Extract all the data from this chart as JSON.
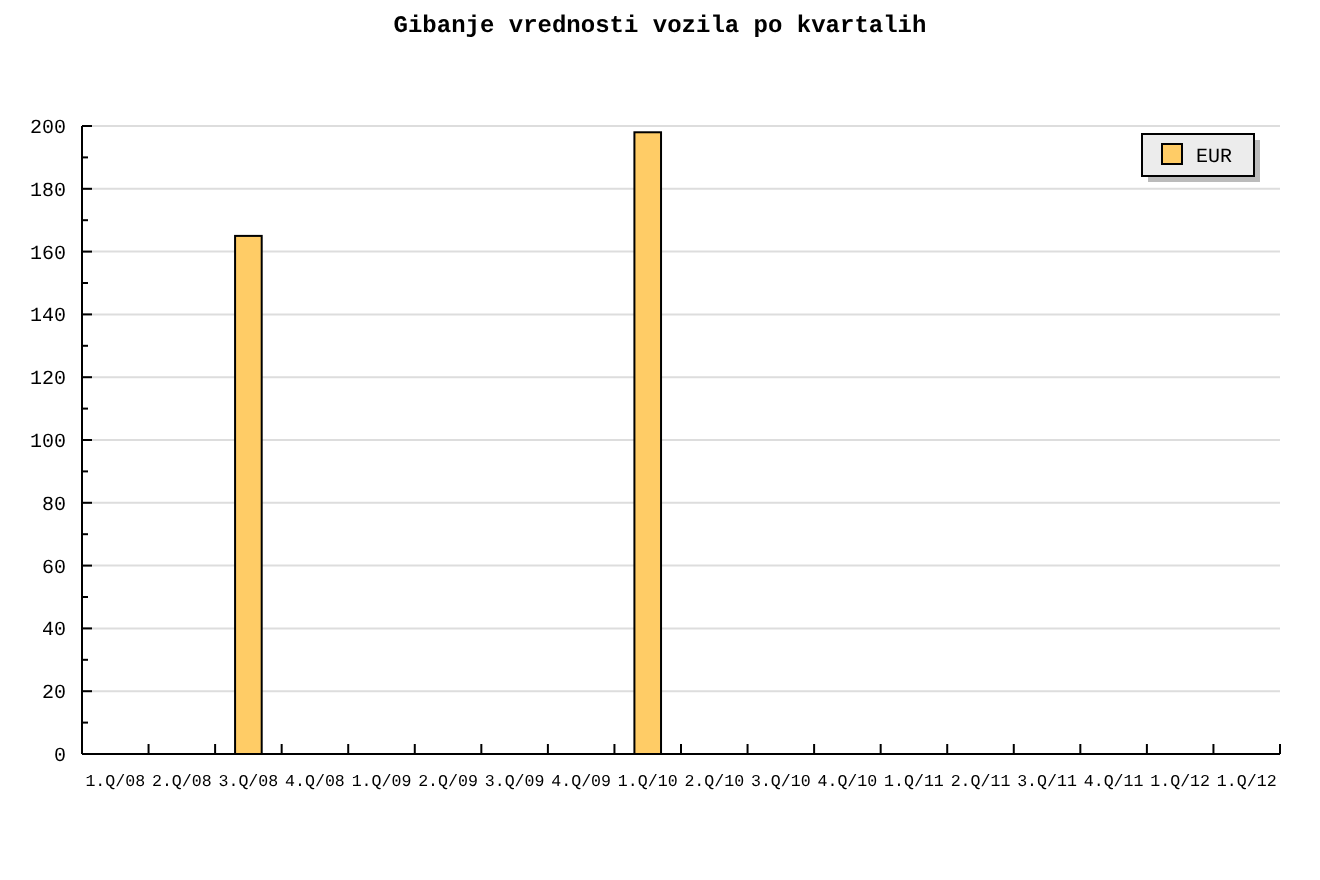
{
  "chart_data": {
    "type": "bar",
    "title": "Gibanje vrednosti vozila po kvartalih",
    "categories": [
      "1.Q/08",
      "2.Q/08",
      "3.Q/08",
      "4.Q/08",
      "1.Q/09",
      "2.Q/09",
      "3.Q/09",
      "4.Q/09",
      "1.Q/10",
      "2.Q/10",
      "3.Q/10",
      "4.Q/10",
      "1.Q/11",
      "2.Q/11",
      "3.Q/11",
      "4.Q/11",
      "1.Q/12",
      "1.Q/12"
    ],
    "series": [
      {
        "name": "EUR",
        "color": "#ffcc66",
        "values": [
          null,
          null,
          165,
          null,
          null,
          null,
          null,
          null,
          198,
          null,
          null,
          null,
          null,
          null,
          null,
          null,
          null,
          null
        ]
      }
    ],
    "ylim": [
      0,
      200
    ],
    "yticks": [
      0,
      {
        "value": 10,
        "label": null
      },
      20,
      {
        "value": 30,
        "label": null
      },
      40,
      {
        "value": 50,
        "label": null
      },
      60,
      {
        "value": 70,
        "label": null
      },
      80,
      {
        "value": 90,
        "label": null
      },
      100,
      {
        "value": 110,
        "label": null
      },
      120,
      {
        "value": 130,
        "label": null
      },
      140,
      {
        "value": 150,
        "label": null
      },
      160,
      {
        "value": 170,
        "label": null
      },
      180,
      {
        "value": 190,
        "label": null
      },
      200
    ],
    "grid": "y",
    "legend": "top right"
  }
}
